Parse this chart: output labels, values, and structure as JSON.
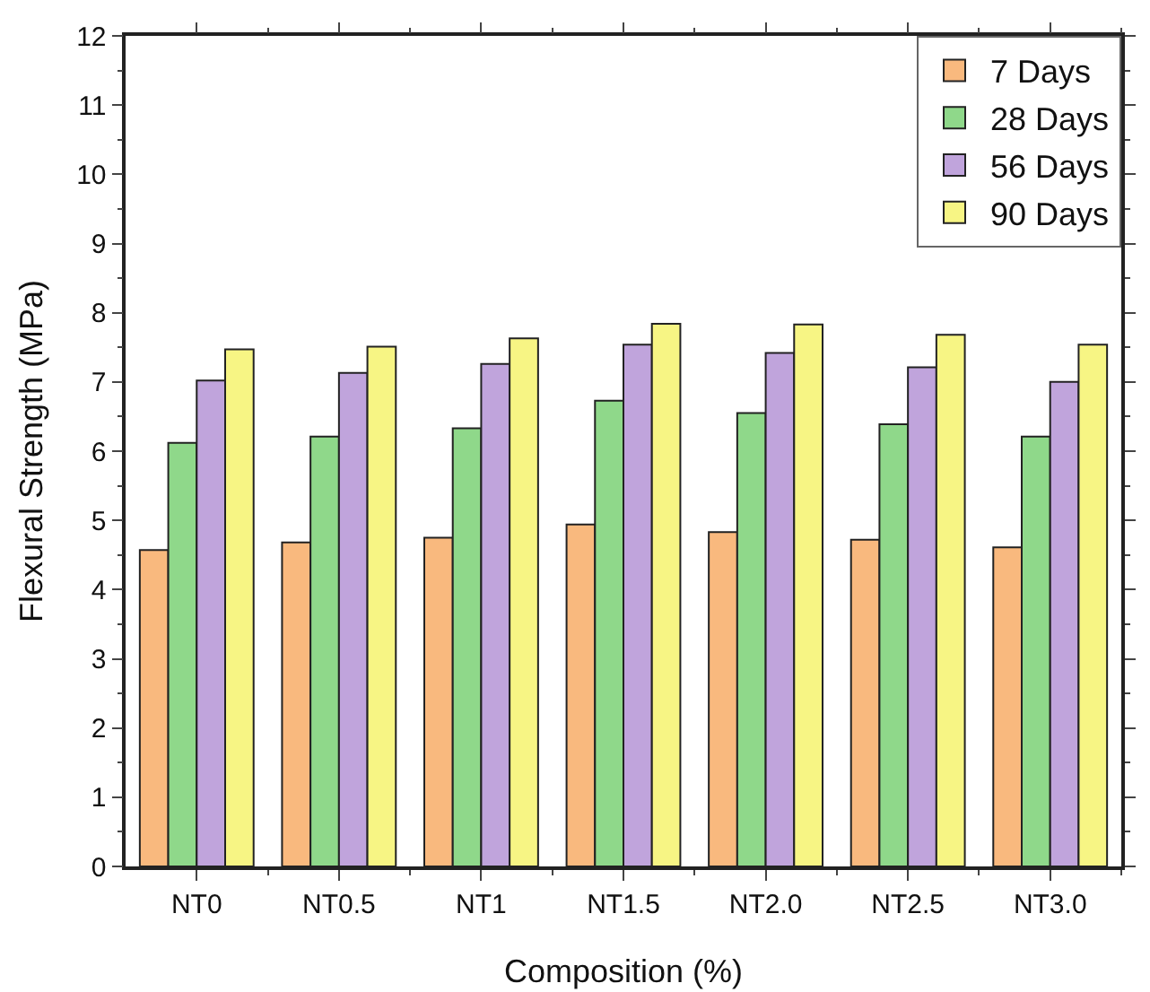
{
  "chart_data": {
    "type": "bar",
    "xlabel": "Composition (%)",
    "ylabel": "Flexural Strength (MPa)",
    "categories": [
      "NT0",
      "NT0.5",
      "NT1",
      "NT1.5",
      "NT2.0",
      "NT2.5",
      "NT3.0"
    ],
    "series": [
      {
        "name": "7 Days",
        "color": "#f9b97e",
        "values": [
          4.57,
          4.68,
          4.75,
          4.94,
          4.83,
          4.72,
          4.61
        ]
      },
      {
        "name": "28 Days",
        "color": "#8fd88a",
        "values": [
          6.12,
          6.21,
          6.33,
          6.73,
          6.55,
          6.39,
          6.21
        ]
      },
      {
        "name": "56 Days",
        "color": "#c0a4dc",
        "values": [
          7.02,
          7.13,
          7.26,
          7.54,
          7.42,
          7.21,
          7.0
        ]
      },
      {
        "name": "90 Days",
        "color": "#f7f584",
        "values": [
          7.47,
          7.51,
          7.63,
          7.84,
          7.83,
          7.68,
          7.54
        ]
      }
    ],
    "ylim": [
      0,
      12
    ],
    "yticks": [
      0,
      1,
      2,
      3,
      4,
      5,
      6,
      7,
      8,
      9,
      10,
      11,
      12
    ],
    "grid": false,
    "legend": "top right"
  }
}
